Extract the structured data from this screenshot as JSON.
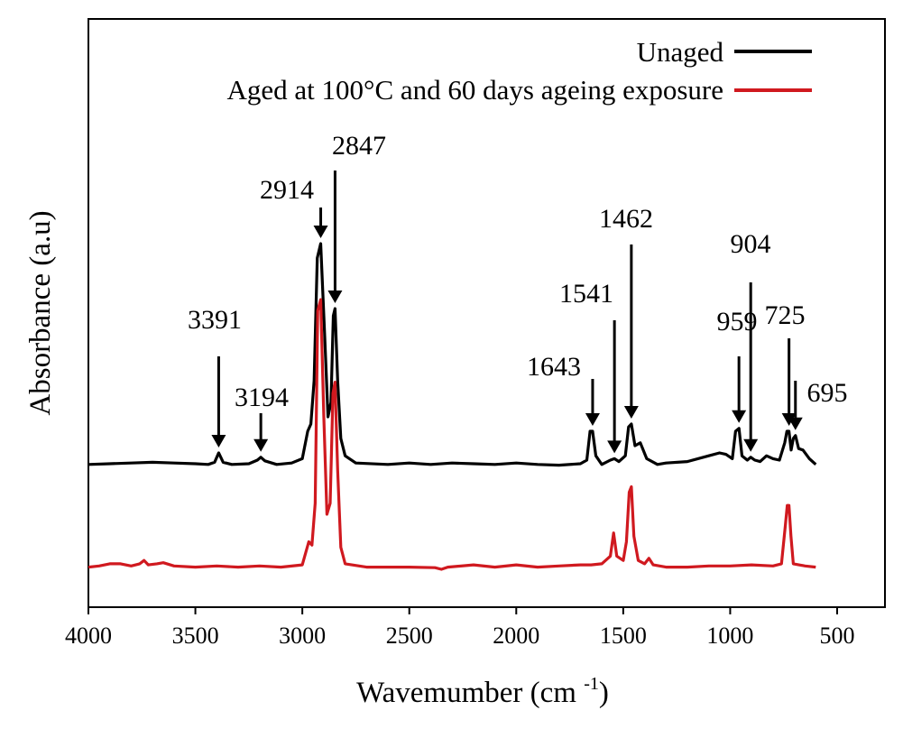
{
  "chart_data": {
    "type": "line",
    "xlabel": "Wavemumber (cm ",
    "xlabel_sup": "-1",
    "xlabel_close": ")",
    "ylabel": "Absorbance (a.u)",
    "xlim": [
      4000,
      500
    ],
    "x_reversed": true,
    "xticks": [
      4000,
      3500,
      3000,
      2500,
      2000,
      1500,
      1000,
      500
    ],
    "y_ticks_shown": false,
    "grid": false,
    "legend_position": "top-right",
    "series": [
      {
        "name": "Unaged",
        "color": "#000000",
        "points": [
          [
            4000,
            0.02
          ],
          [
            3900,
            0.025
          ],
          [
            3800,
            0.03
          ],
          [
            3700,
            0.035
          ],
          [
            3600,
            0.03
          ],
          [
            3500,
            0.025
          ],
          [
            3440,
            0.02
          ],
          [
            3410,
            0.035
          ],
          [
            3391,
            0.1
          ],
          [
            3370,
            0.035
          ],
          [
            3330,
            0.02
          ],
          [
            3250,
            0.025
          ],
          [
            3210,
            0.05
          ],
          [
            3194,
            0.07
          ],
          [
            3175,
            0.045
          ],
          [
            3120,
            0.02
          ],
          [
            3050,
            0.03
          ],
          [
            3000,
            0.06
          ],
          [
            2975,
            0.25
          ],
          [
            2960,
            0.3
          ],
          [
            2945,
            0.6
          ],
          [
            2930,
            1.45
          ],
          [
            2914,
            1.55
          ],
          [
            2895,
            0.9
          ],
          [
            2880,
            0.35
          ],
          [
            2866,
            0.45
          ],
          [
            2855,
            1.05
          ],
          [
            2847,
            1.1
          ],
          [
            2835,
            0.6
          ],
          [
            2820,
            0.2
          ],
          [
            2800,
            0.08
          ],
          [
            2750,
            0.03
          ],
          [
            2600,
            0.02
          ],
          [
            2500,
            0.03
          ],
          [
            2400,
            0.02
          ],
          [
            2300,
            0.03
          ],
          [
            2200,
            0.025
          ],
          [
            2100,
            0.02
          ],
          [
            2000,
            0.03
          ],
          [
            1900,
            0.02
          ],
          [
            1800,
            0.015
          ],
          [
            1700,
            0.025
          ],
          [
            1670,
            0.05
          ],
          [
            1655,
            0.25
          ],
          [
            1643,
            0.25
          ],
          [
            1628,
            0.08
          ],
          [
            1600,
            0.02
          ],
          [
            1560,
            0.05
          ],
          [
            1541,
            0.06
          ],
          [
            1520,
            0.04
          ],
          [
            1490,
            0.08
          ],
          [
            1475,
            0.28
          ],
          [
            1462,
            0.3
          ],
          [
            1445,
            0.15
          ],
          [
            1420,
            0.17
          ],
          [
            1390,
            0.06
          ],
          [
            1340,
            0.02
          ],
          [
            1300,
            0.03
          ],
          [
            1200,
            0.04
          ],
          [
            1100,
            0.08
          ],
          [
            1050,
            0.1
          ],
          [
            1020,
            0.09
          ],
          [
            990,
            0.06
          ],
          [
            975,
            0.25
          ],
          [
            959,
            0.27
          ],
          [
            945,
            0.08
          ],
          [
            920,
            0.05
          ],
          [
            904,
            0.07
          ],
          [
            885,
            0.05
          ],
          [
            860,
            0.04
          ],
          [
            830,
            0.08
          ],
          [
            800,
            0.06
          ],
          [
            770,
            0.05
          ],
          [
            745,
            0.17
          ],
          [
            735,
            0.25
          ],
          [
            725,
            0.25
          ],
          [
            715,
            0.12
          ],
          [
            705,
            0.2
          ],
          [
            695,
            0.22
          ],
          [
            680,
            0.13
          ],
          [
            660,
            0.12
          ],
          [
            630,
            0.06
          ],
          [
            600,
            0.02
          ]
        ]
      },
      {
        "name": "Aged at 100°C and 60 days ageing exposure",
        "color": "#d0191f",
        "points": [
          [
            4000,
            0.02
          ],
          [
            3950,
            0.03
          ],
          [
            3900,
            0.05
          ],
          [
            3850,
            0.05
          ],
          [
            3800,
            0.03
          ],
          [
            3760,
            0.05
          ],
          [
            3740,
            0.08
          ],
          [
            3720,
            0.04
          ],
          [
            3680,
            0.05
          ],
          [
            3650,
            0.06
          ],
          [
            3600,
            0.03
          ],
          [
            3500,
            0.02
          ],
          [
            3400,
            0.03
          ],
          [
            3300,
            0.02
          ],
          [
            3200,
            0.03
          ],
          [
            3100,
            0.02
          ],
          [
            3000,
            0.04
          ],
          [
            2970,
            0.25
          ],
          [
            2955,
            0.22
          ],
          [
            2940,
            0.6
          ],
          [
            2928,
            2.35
          ],
          [
            2914,
            2.45
          ],
          [
            2900,
            1.4
          ],
          [
            2885,
            0.5
          ],
          [
            2870,
            0.6
          ],
          [
            2857,
            1.6
          ],
          [
            2847,
            1.7
          ],
          [
            2835,
            0.9
          ],
          [
            2820,
            0.2
          ],
          [
            2800,
            0.05
          ],
          [
            2700,
            0.02
          ],
          [
            2500,
            0.02
          ],
          [
            2380,
            0.015
          ],
          [
            2350,
            0.0
          ],
          [
            2320,
            0.02
          ],
          [
            2200,
            0.04
          ],
          [
            2100,
            0.02
          ],
          [
            2000,
            0.04
          ],
          [
            1900,
            0.02
          ],
          [
            1800,
            0.03
          ],
          [
            1700,
            0.04
          ],
          [
            1650,
            0.04
          ],
          [
            1600,
            0.05
          ],
          [
            1560,
            0.12
          ],
          [
            1545,
            0.33
          ],
          [
            1530,
            0.12
          ],
          [
            1500,
            0.08
          ],
          [
            1485,
            0.25
          ],
          [
            1472,
            0.7
          ],
          [
            1462,
            0.75
          ],
          [
            1450,
            0.3
          ],
          [
            1430,
            0.08
          ],
          [
            1400,
            0.05
          ],
          [
            1380,
            0.1
          ],
          [
            1360,
            0.04
          ],
          [
            1300,
            0.02
          ],
          [
            1200,
            0.02
          ],
          [
            1100,
            0.03
          ],
          [
            1000,
            0.03
          ],
          [
            900,
            0.04
          ],
          [
            800,
            0.03
          ],
          [
            760,
            0.05
          ],
          [
            742,
            0.4
          ],
          [
            733,
            0.58
          ],
          [
            725,
            0.58
          ],
          [
            716,
            0.3
          ],
          [
            705,
            0.05
          ],
          [
            650,
            0.03
          ],
          [
            600,
            0.02
          ]
        ]
      }
    ],
    "annotations": [
      {
        "text": "3391",
        "x": 3391,
        "on": "Unaged"
      },
      {
        "text": "3194",
        "x": 3194,
        "on": "Unaged"
      },
      {
        "text": "2914",
        "x": 2914,
        "on": "Unaged"
      },
      {
        "text": "2847",
        "x": 2847,
        "on": "Unaged"
      },
      {
        "text": "1643",
        "x": 1643,
        "on": "Unaged"
      },
      {
        "text": "1541",
        "x": 1541,
        "on": "Unaged"
      },
      {
        "text": "1462",
        "x": 1462,
        "on": "Unaged"
      },
      {
        "text": "959",
        "x": 959,
        "on": "Unaged"
      },
      {
        "text": "904",
        "x": 904,
        "on": "Unaged"
      },
      {
        "text": "725",
        "x": 725,
        "on": "Unaged"
      },
      {
        "text": "695",
        "x": 695,
        "on": "Unaged"
      }
    ]
  }
}
